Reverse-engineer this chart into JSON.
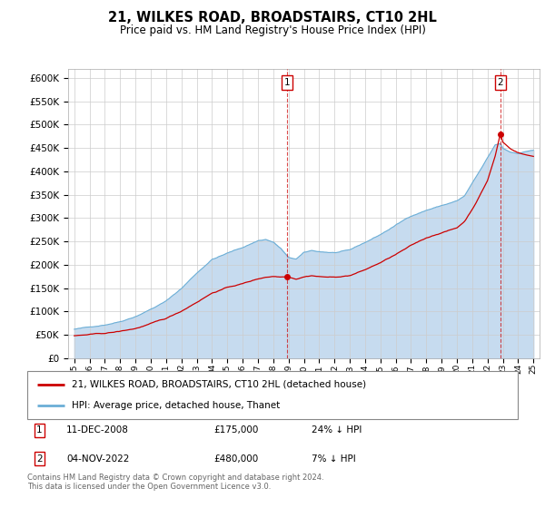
{
  "title": "21, WILKES ROAD, BROADSTAIRS, CT10 2HL",
  "subtitle": "Price paid vs. HM Land Registry's House Price Index (HPI)",
  "legend_line1": "21, WILKES ROAD, BROADSTAIRS, CT10 2HL (detached house)",
  "legend_line2": "HPI: Average price, detached house, Thanet",
  "annotation1_date": "11-DEC-2008",
  "annotation1_price": "£175,000",
  "annotation1_hpi": "24% ↓ HPI",
  "annotation2_date": "04-NOV-2022",
  "annotation2_price": "£480,000",
  "annotation2_hpi": "7% ↓ HPI",
  "footnote": "Contains HM Land Registry data © Crown copyright and database right 2024.\nThis data is licensed under the Open Government Licence v3.0.",
  "color_property": "#cc0000",
  "color_hpi": "#6baed6",
  "color_hpi_fill": "#c6dbef",
  "color_vline": "#cc0000",
  "color_grid": "#cccccc",
  "ylim_min": 0,
  "ylim_max": 620000,
  "purchase1_year": 2008.92,
  "purchase1_value": 175000,
  "purchase2_year": 2022.84,
  "purchase2_value": 480000,
  "xtick_labels": [
    "95",
    "96",
    "97",
    "98",
    "99",
    "00",
    "01",
    "02",
    "03",
    "04",
    "05",
    "06",
    "07",
    "08",
    "09",
    "10",
    "11",
    "12",
    "13",
    "14",
    "15",
    "16",
    "17",
    "18",
    "19",
    "20",
    "21",
    "22",
    "23",
    "24",
    "25"
  ]
}
